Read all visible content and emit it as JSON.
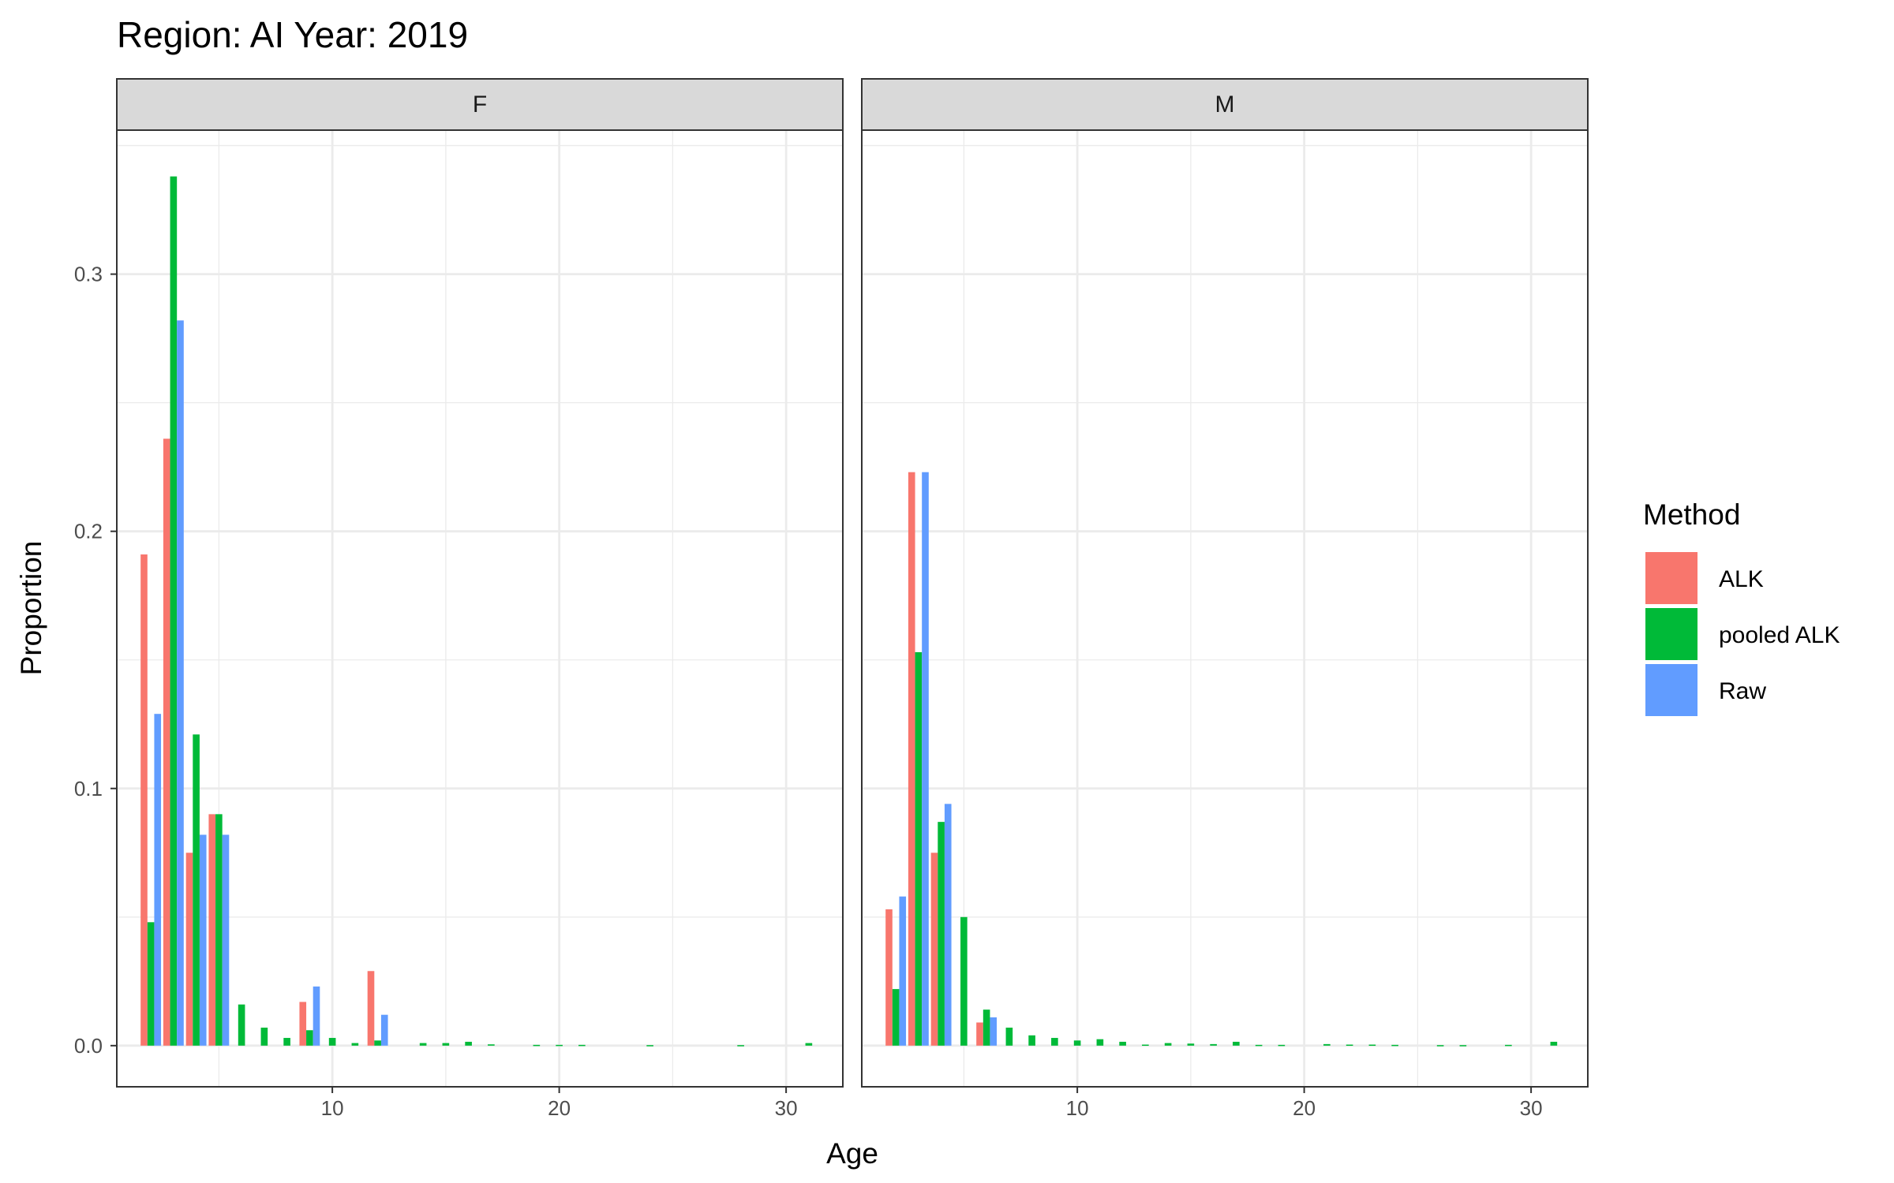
{
  "title": "Region: AI Year: 2019",
  "chart_data": {
    "type": "bar",
    "title": "Region: AI Year: 2019",
    "xlabel": "Age",
    "ylabel": "Proportion",
    "xlim": [
      0.5,
      32.5
    ],
    "ylim": [
      -0.016,
      0.356
    ],
    "x_ticks": [
      10,
      20,
      30
    ],
    "y_ticks": [
      0.0,
      0.1,
      0.2,
      0.3
    ],
    "x_tick_labels": [
      "10",
      "20",
      "30"
    ],
    "y_tick_labels": [
      "0.0",
      "0.1",
      "0.2",
      "0.3"
    ],
    "grid": true,
    "legend": {
      "title": "Method",
      "placement": "right",
      "entries": [
        {
          "label": "ALK",
          "color": "#F8766D"
        },
        {
          "label": "pooled ALK",
          "color": "#00BA38"
        },
        {
          "label": "Raw",
          "color": "#619CFF"
        }
      ]
    },
    "panels": [
      {
        "label": "F",
        "series": [
          {
            "name": "ALK",
            "points": [
              [
                2,
                0.191
              ],
              [
                3,
                0.236
              ],
              [
                4,
                0.075
              ],
              [
                5,
                0.09
              ],
              [
                9,
                0.017
              ],
              [
                12,
                0.029
              ]
            ]
          },
          {
            "name": "pooled ALK",
            "points": [
              [
                2,
                0.048
              ],
              [
                3,
                0.338
              ],
              [
                4,
                0.121
              ],
              [
                5,
                0.09
              ],
              [
                6,
                0.016
              ],
              [
                7,
                0.007
              ],
              [
                8,
                0.003
              ],
              [
                9,
                0.006
              ],
              [
                10,
                0.003
              ],
              [
                11,
                0.001
              ],
              [
                12,
                0.002
              ],
              [
                14,
                0.001
              ],
              [
                15,
                0.001
              ],
              [
                16,
                0.0015
              ],
              [
                17,
                0.0005
              ],
              [
                19,
                0.0003
              ],
              [
                20,
                0.0003
              ],
              [
                21,
                0.0003
              ],
              [
                24,
                0.0002
              ],
              [
                28,
                0.0002
              ],
              [
                31,
                0.001
              ]
            ]
          },
          {
            "name": "Raw",
            "points": [
              [
                2,
                0.129
              ],
              [
                3,
                0.282
              ],
              [
                4,
                0.082
              ],
              [
                5,
                0.082
              ],
              [
                9,
                0.023
              ],
              [
                12,
                0.012
              ]
            ]
          }
        ]
      },
      {
        "label": "M",
        "series": [
          {
            "name": "ALK",
            "points": [
              [
                2,
                0.053
              ],
              [
                3,
                0.223
              ],
              [
                4,
                0.075
              ],
              [
                6,
                0.009
              ]
            ]
          },
          {
            "name": "pooled ALK",
            "points": [
              [
                2,
                0.022
              ],
              [
                3,
                0.153
              ],
              [
                4,
                0.087
              ],
              [
                5,
                0.05
              ],
              [
                6,
                0.014
              ],
              [
                7,
                0.007
              ],
              [
                8,
                0.004
              ],
              [
                9,
                0.003
              ],
              [
                10,
                0.002
              ],
              [
                11,
                0.0025
              ],
              [
                12,
                0.0015
              ],
              [
                13,
                0.0004
              ],
              [
                14,
                0.001
              ],
              [
                15,
                0.0008
              ],
              [
                16,
                0.0006
              ],
              [
                17,
                0.0015
              ],
              [
                18,
                0.0003
              ],
              [
                19,
                0.0003
              ],
              [
                21,
                0.0006
              ],
              [
                22,
                0.0004
              ],
              [
                23,
                0.0004
              ],
              [
                24,
                0.0003
              ],
              [
                26,
                0.0002
              ],
              [
                27,
                0.0002
              ],
              [
                29,
                0.0003
              ],
              [
                31,
                0.0015
              ]
            ]
          },
          {
            "name": "Raw",
            "points": [
              [
                2,
                0.058
              ],
              [
                3,
                0.223
              ],
              [
                4,
                0.094
              ],
              [
                6,
                0.011
              ]
            ]
          }
        ]
      }
    ]
  }
}
